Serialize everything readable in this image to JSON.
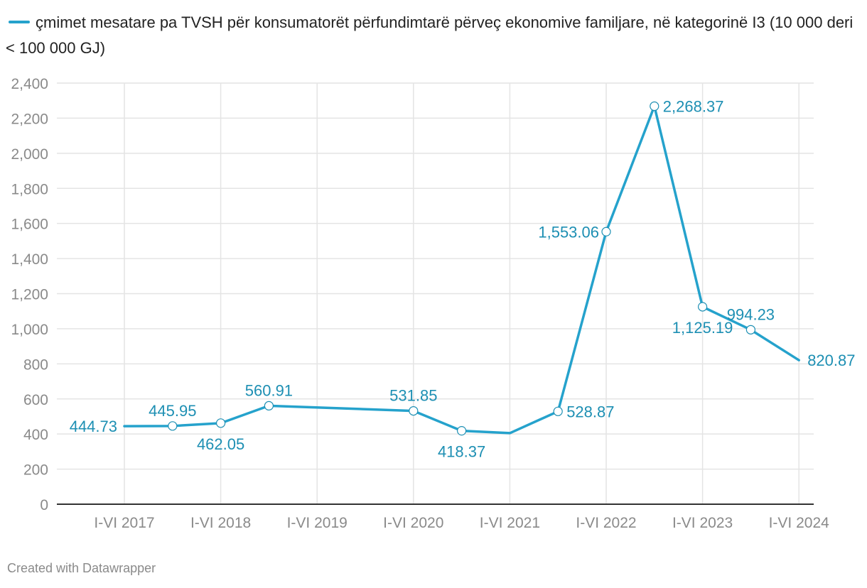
{
  "colors": {
    "line": "#25a2cc",
    "label": "#1d8fb3",
    "grid": "#e4e4e4",
    "axis": "#333333",
    "tick": "#8a8a8a"
  },
  "legend": {
    "label": "çmimet mesatare pa TVSH për konsumatorët përfundimtarë përveç ekonomive familjare, në kategorinë I3 (10 000 deri < 100 000 GJ)"
  },
  "footer": {
    "credit": "Created with Datawrapper"
  },
  "chart_data": {
    "type": "line",
    "title": "",
    "xlabel": "",
    "ylabel": "",
    "ylim": [
      0,
      2400
    ],
    "y_ticks": [
      0,
      200,
      400,
      600,
      800,
      1000,
      1200,
      1400,
      1600,
      1800,
      2000,
      2200,
      2400
    ],
    "y_tick_labels": [
      "0",
      "200",
      "400",
      "600",
      "800",
      "1,000",
      "1,200",
      "1,400",
      "1,600",
      "1,800",
      "2,000",
      "2,200",
      "2,400"
    ],
    "x_ticks": [
      0,
      2,
      4,
      6,
      8,
      10,
      12,
      14
    ],
    "x_tick_labels": [
      "I-VI 2017",
      "I-VI 2018",
      "I-VI 2019",
      "I-VI 2020",
      "I-VI 2021",
      "I-VI 2022",
      "I-VI 2023",
      "I-VI 2024"
    ],
    "grid": true,
    "series": [
      {
        "name": "çmimet mesatare pa TVSH për konsumatorët përfundimtarë përveç ekonomive familjare, në kategorinë I3 (10 000 deri < 100 000 GJ)",
        "x": [
          0,
          1,
          2,
          3,
          6,
          7,
          8,
          9,
          10,
          11,
          12,
          13,
          14
        ],
        "values": [
          444.73,
          445.95,
          462.05,
          560.91,
          531.85,
          418.37,
          405,
          528.87,
          1553.06,
          2268.37,
          1125.19,
          994.23,
          820.87
        ],
        "markers": [
          false,
          true,
          true,
          true,
          true,
          true,
          false,
          true,
          true,
          true,
          true,
          true,
          false
        ],
        "labels": [
          "444.73",
          "445.95",
          "462.05",
          "560.91",
          "531.85",
          "418.37",
          "",
          "528.87",
          "1,553.06",
          "2,268.37",
          "1,125.19",
          "994.23",
          "820.87"
        ],
        "label_pos": [
          "left",
          "above",
          "below",
          "above",
          "above",
          "below",
          "none",
          "right",
          "left",
          "right",
          "below",
          "above",
          "right"
        ]
      }
    ]
  }
}
